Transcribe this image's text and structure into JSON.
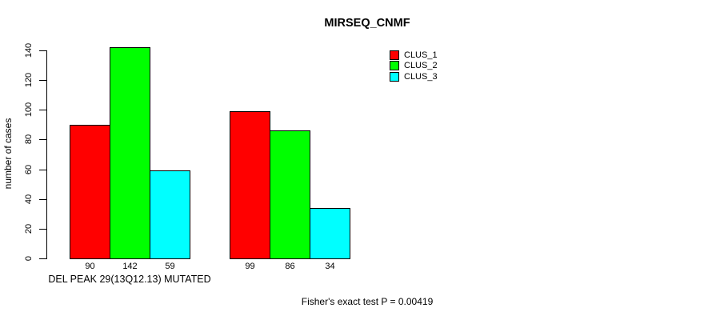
{
  "figure": {
    "background": "#ffffff",
    "text_color": "#000000"
  },
  "chart_data": {
    "type": "bar",
    "title": "MIRSEQ_CNMF",
    "ylabel": "number of cases",
    "xlabel": "DEL PEAK 29(13Q12.13) MUTATED",
    "annotation": "Fisher's exact test P = 0.00419",
    "ylim": [
      0,
      140
    ],
    "yticks": [
      0,
      20,
      40,
      60,
      80,
      100,
      120,
      140
    ],
    "grid": false,
    "legend_position": "right-of-plot-top",
    "show_value_labels": true,
    "num_groups": 2,
    "series": [
      {
        "name": "CLUS_1",
        "color": "#ff0000",
        "values": [
          90,
          99
        ]
      },
      {
        "name": "CLUS_2",
        "color": "#00ff00",
        "values": [
          142,
          86
        ]
      },
      {
        "name": "CLUS_3",
        "color": "#00ffff",
        "values": [
          59,
          34
        ]
      }
    ]
  }
}
